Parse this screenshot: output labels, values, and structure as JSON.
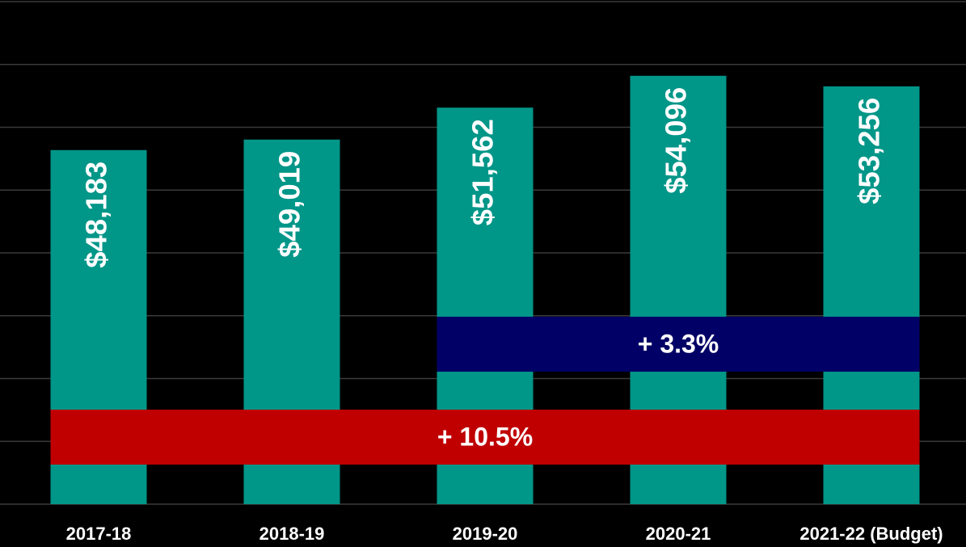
{
  "chart_data": {
    "type": "bar",
    "categories": [
      "2017-18",
      "2018-19",
      "2019-20",
      "2020-21",
      "2021-22 (Budget)"
    ],
    "values": [
      48183,
      49019,
      51562,
      54096,
      53256
    ],
    "value_labels": [
      "$48,183",
      "$49,019",
      "$51,562",
      "$54,096",
      "$53,256"
    ],
    "color": "#009688",
    "ylim": [
      20000,
      60000
    ],
    "yticks": [
      20000,
      25000,
      30000,
      35000,
      40000,
      45000,
      50000,
      55000,
      60000
    ],
    "grid": true,
    "annotations": [
      {
        "text": "+ 10.5%",
        "color": "#c00000"
      },
      {
        "text": "+ 3.3%",
        "color": "#000066"
      }
    ]
  }
}
